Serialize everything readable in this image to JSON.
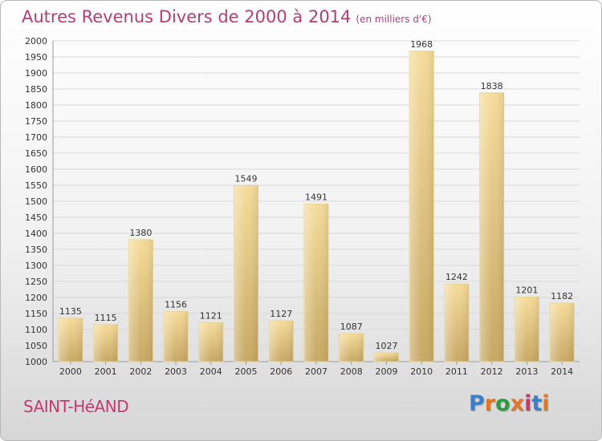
{
  "title": "Autres Revenus Divers de 2000 à 2014",
  "subtitle": "(en milliers d'€)",
  "commune": "SAINT-HéAND",
  "logo": {
    "text": "Proxiti",
    "letter_colors": [
      "#3a7fc7",
      "#e0762a",
      "#2e9a43",
      "#e0762a",
      "#c63b6e",
      "#3a7fc7",
      "#e0762a"
    ]
  },
  "colors": {
    "bar_light": "#f6dc9a",
    "bar_dark": "#c8a864",
    "title": "#b83a78",
    "commune": "#c63b6e",
    "grid": "#d9d9d9"
  },
  "chart_data": {
    "type": "bar",
    "title": "Autres Revenus Divers de 2000 à 2014",
    "subtitle": "(en milliers d'€)",
    "categories": [
      "2000",
      "2001",
      "2002",
      "2003",
      "2004",
      "2005",
      "2006",
      "2007",
      "2008",
      "2009",
      "2010",
      "2011",
      "2012",
      "2013",
      "2014"
    ],
    "values": [
      1135,
      1115,
      1380,
      1156,
      1121,
      1549,
      1127,
      1491,
      1087,
      1027,
      1968,
      1242,
      1838,
      1201,
      1182
    ],
    "ylim": [
      1000,
      2000
    ],
    "yticks": [
      1000,
      1050,
      1100,
      1150,
      1200,
      1250,
      1300,
      1350,
      1400,
      1450,
      1500,
      1550,
      1600,
      1650,
      1700,
      1750,
      1800,
      1850,
      1900,
      1950,
      2000
    ],
    "grid": true,
    "xlabel": "",
    "ylabel": ""
  }
}
